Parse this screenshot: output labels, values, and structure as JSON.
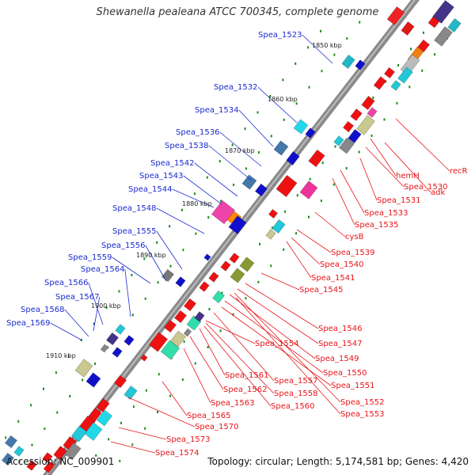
{
  "title": "Shewanella pealeana ATCC 700345, complete genome",
  "footer": {
    "accession": "Accession: NC_009901",
    "summary": "Topology: circular; Length: 5,174,581 bp; Genes: 4,420"
  },
  "kbp_marks": [
    "1850 kbp",
    "1860 kbp",
    "1870 kbp",
    "1880 kbp",
    "1890 kbp",
    "1900 kbp",
    "1910 kbp"
  ],
  "labels_blue": [
    "Spea_1523",
    "Spea_1532",
    "Spea_1534",
    "Spea_1536",
    "Spea_1538",
    "Spea_1542",
    "Spea_1543",
    "Spea_1544",
    "Spea_1548",
    "Spea_1555",
    "Spea_1556",
    "Spea_1559",
    "Spea_1564",
    "Spea_1566",
    "Spea_1567",
    "Spea_1568",
    "Spea_1569"
  ],
  "labels_red": [
    "recR",
    "hemH",
    "adk",
    "Spea_1530",
    "Spea_1531",
    "Spea_1533",
    "Spea_1535",
    "cysB",
    "Spea_1539",
    "Spea_1540",
    "Spea_1541",
    "Spea_1545",
    "Spea_1546",
    "Spea_1547",
    "Spea_1554",
    "Spea_1549",
    "Spea_1550",
    "Spea_1551",
    "Spea_1557",
    "Spea_1561",
    "Spea_1558",
    "Spea_1562",
    "Spea_1560",
    "Spea_1552",
    "Spea_1553",
    "Spea_1563",
    "Spea_1565",
    "Spea_1570",
    "Spea_1573",
    "Spea_1574"
  ]
}
